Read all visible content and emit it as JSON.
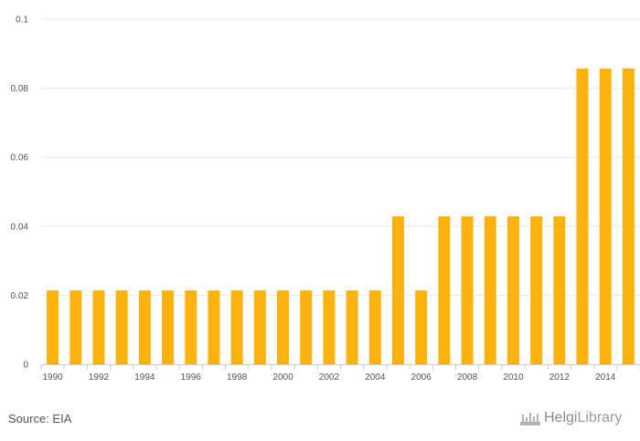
{
  "chart_data": {
    "type": "bar",
    "categories": [
      "1990",
      "1991",
      "1992",
      "1993",
      "1994",
      "1995",
      "1996",
      "1997",
      "1998",
      "1999",
      "2000",
      "2001",
      "2002",
      "2003",
      "2004",
      "2005",
      "2006",
      "2007",
      "2008",
      "2009",
      "2010",
      "2011",
      "2012",
      "2013",
      "2014",
      "2015"
    ],
    "x_tick_labels": [
      "1990",
      "1992",
      "1994",
      "1996",
      "1998",
      "2000",
      "2002",
      "2004",
      "2006",
      "2008",
      "2010",
      "2012",
      "2014"
    ],
    "values": [
      0.0214,
      0.0214,
      0.0214,
      0.0214,
      0.0214,
      0.0214,
      0.0214,
      0.0214,
      0.0214,
      0.0214,
      0.0214,
      0.0214,
      0.0214,
      0.0214,
      0.0214,
      0.0429,
      0.0214,
      0.0429,
      0.0429,
      0.0429,
      0.0429,
      0.0429,
      0.0429,
      0.0857,
      0.0857,
      0.0857
    ],
    "y_ticks": [
      "0",
      "0.02",
      "0.04",
      "0.06",
      "0.08",
      "0.1"
    ],
    "ylim": [
      0,
      0.1
    ],
    "grid": true,
    "bar_color": "#FDB30F",
    "grid_color": "#e6e6e6",
    "axis_color": "#cccccc"
  },
  "footer": {
    "source": "Source: EIA",
    "logo_part1": "Helgi",
    "logo_part2": "Library"
  }
}
